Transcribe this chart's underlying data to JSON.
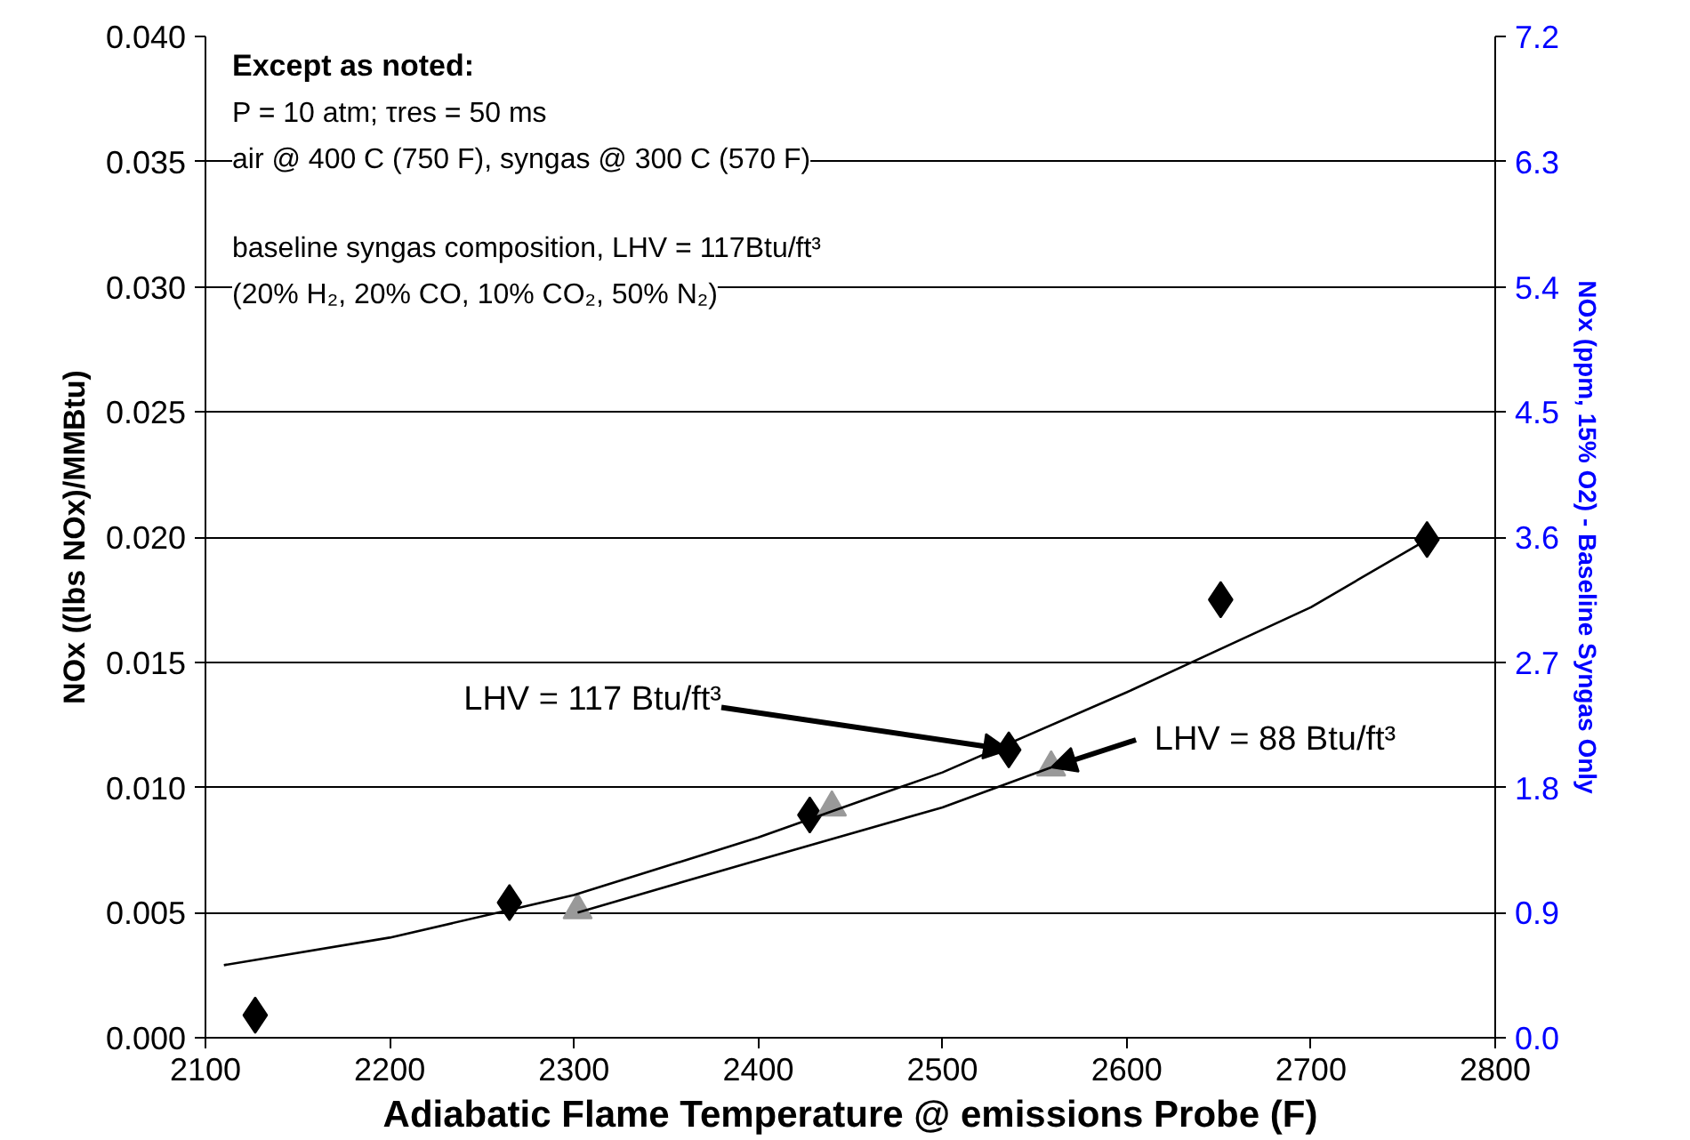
{
  "chart_data": {
    "type": "scatter",
    "xlabel": "Adiabatic Flame Temperature @ emissions Probe (F)",
    "ylabel": "NOx ((lbs NOx)/MMBtu)",
    "y2label": "NOx (ppm, 15% O2) - Baseline Syngas Only",
    "series": [
      {
        "marker": "diamond",
        "color": "#000000",
        "x": [
          2127,
          2265,
          2428,
          2536,
          2651,
          2763
        ],
        "values": [
          0.0009,
          0.0054,
          0.0089,
          0.0115,
          0.0175,
          0.0199
        ]
      },
      {
        "marker": "triangle",
        "color": "#999999",
        "x": [
          2302,
          2440,
          2559
        ],
        "values": [
          0.0051,
          0.0092,
          0.0108
        ]
      },
      {
        "type": "line",
        "color": "#000000",
        "x": [
          2110,
          2200,
          2300,
          2400,
          2465,
          2500,
          2600,
          2700,
          2763
        ],
        "values": [
          0.0029,
          0.004,
          0.0057,
          0.008,
          0.0097,
          0.0106,
          0.0138,
          0.0172,
          0.0199
        ]
      },
      {
        "type": "line",
        "color": "#000000",
        "x": [
          2302,
          2400,
          2500,
          2559
        ],
        "values": [
          0.005,
          0.0071,
          0.0092,
          0.0108
        ]
      }
    ],
    "xlim": [
      2100,
      2800
    ],
    "xticks": [
      2100,
      2200,
      2300,
      2400,
      2500,
      2600,
      2700,
      2800
    ],
    "ylim": [
      0,
      0.04
    ],
    "yticks": [
      {
        "value": 0,
        "label": "0.000"
      },
      {
        "value": 0.005,
        "label": "0.005"
      },
      {
        "value": 0.01,
        "label": "0.010"
      },
      {
        "value": 0.015,
        "label": "0.015"
      },
      {
        "value": 0.02,
        "label": "0.020"
      },
      {
        "value": 0.025,
        "label": "0.025"
      },
      {
        "value": 0.03,
        "label": "0.030"
      },
      {
        "value": 0.035,
        "label": "0.035"
      },
      {
        "value": 0.04,
        "label": "0.040"
      }
    ],
    "y2lim": [
      0,
      7.2
    ],
    "y2ticks": [
      {
        "value": 0,
        "label": "0.0"
      },
      0.9,
      1.8,
      2.7,
      3.6,
      4.5,
      5.4,
      6.3,
      7.2
    ],
    "grid": "y",
    "annotations": [
      "Except as noted:",
      "P = 10 atm; τres = 50 ms",
      "air @ 400 C (750 F), syngas @ 300 C (570 F)",
      "baseline syngas composition, LHV = 117Btu/ft³",
      "(20% H₂, 20% CO, 10% CO₂, 50% N₂)",
      {
        "text": "LHV = 117 Btu/ft³",
        "x": 2536,
        "y": 0.0115
      },
      {
        "text": "LHV = 88 Btu/ft³",
        "x": 2559,
        "y": 0.0108
      }
    ]
  }
}
